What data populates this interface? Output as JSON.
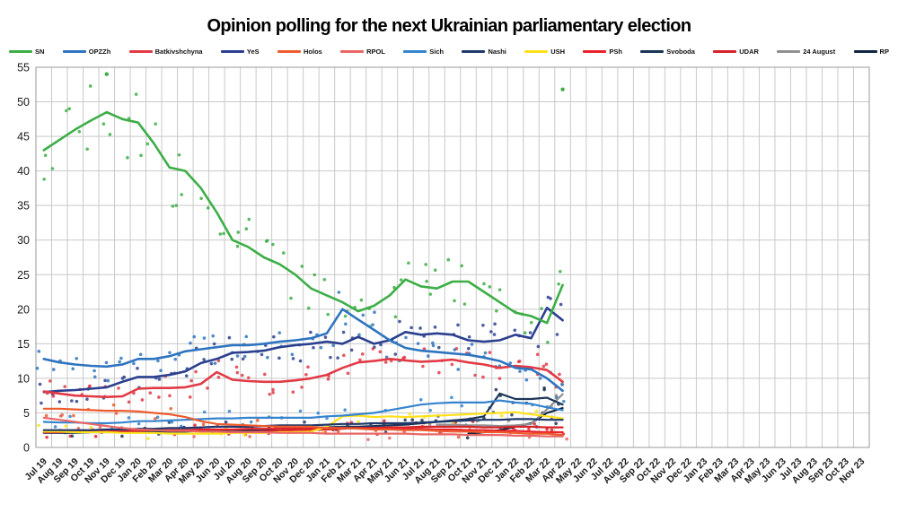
{
  "title": "Opinion polling for the next Ukrainian parliamentary election",
  "chart_data": {
    "type": "line",
    "title": "Opinion polling for the next Ukrainian parliamentary election",
    "xlabel": "",
    "ylabel": "",
    "ylim": [
      0,
      55
    ],
    "y_ticks": [
      0,
      5,
      10,
      15,
      20,
      25,
      30,
      35,
      40,
      45,
      50,
      55
    ],
    "grid": true,
    "legend_position": "top",
    "scatter_note": "Small dots are individual poll results; thick lines are trend averages. Polling data ends around Apr 22; empty grid continues to Nov 23.",
    "x_labels": [
      "Jul 19",
      "Aug 19",
      "Sep 19",
      "Oct 19",
      "Nov 19",
      "Dec 19",
      "Jan 20",
      "Feb 20",
      "Mar 20",
      "Apr 20",
      "May 20",
      "Jun 20",
      "Jul 20",
      "Aug 20",
      "Sep 20",
      "Oct 20",
      "Nov 20",
      "Dec 20",
      "Jan 21",
      "Feb 21",
      "Mar 21",
      "Apr 21",
      "May 21",
      "Jun 21",
      "Jul 21",
      "Aug 21",
      "Sep 21",
      "Oct 21",
      "Nov 21",
      "Dec 21",
      "Jan 22",
      "Feb 22",
      "Mar 22",
      "Apr 22",
      "May 22",
      "Jun 22",
      "Jul 22",
      "Aug 22",
      "Sep 22",
      "Oct 22",
      "Nov 22",
      "Dec 22",
      "Jan 23",
      "Feb 23",
      "Mar 23",
      "Apr 23",
      "May 23",
      "Jun 23",
      "Jul 23",
      "Aug 23",
      "Sep 23",
      "Oct 23",
      "Nov 23"
    ],
    "data_end": "Apr 22",
    "series": [
      {
        "name": "SN",
        "color": "#3dae46",
        "values": [
          43,
          44.5,
          46,
          47.3,
          48.5,
          47.5,
          47,
          44,
          40.5,
          40,
          37.5,
          34,
          30,
          29,
          27.5,
          26.5,
          25,
          23,
          22,
          21,
          19.7,
          20.5,
          22,
          24.3,
          23.3,
          23,
          24,
          24,
          22.5,
          21,
          19.5,
          19,
          18,
          23.5
        ]
      },
      {
        "name": "OPZZh",
        "color": "#2e74c0",
        "values": [
          12.8,
          12.3,
          12,
          11.8,
          11.7,
          12,
          12.8,
          12.8,
          13.2,
          13.9,
          14.2,
          14.5,
          14.8,
          14.8,
          15,
          15.3,
          15.5,
          15.8,
          16.5,
          20,
          18.5,
          17,
          15.5,
          14.4,
          14,
          13.8,
          13.6,
          13.4,
          13,
          12.5,
          11.5,
          11.3,
          10,
          8.2
        ]
      },
      {
        "name": "Batkivshchyna",
        "color": "#e23a45",
        "values": [
          8.1,
          7.8,
          7.5,
          7.4,
          7.3,
          7.4,
          8.5,
          8.6,
          8.6,
          8.7,
          9.2,
          10.9,
          9.8,
          9.6,
          9.5,
          9.5,
          9.7,
          10,
          10.5,
          11.5,
          12.3,
          12.5,
          12.8,
          12.6,
          12.4,
          12.5,
          12.7,
          12.3,
          12,
          11.5,
          11.8,
          11.6,
          11.2,
          9.5
        ]
      },
      {
        "name": "YeS",
        "color": "#2b3f8f",
        "values": [
          8,
          8.2,
          8.3,
          8.5,
          8.7,
          9.5,
          10.2,
          10.2,
          10.5,
          11,
          12.2,
          12.8,
          13.7,
          13.8,
          14,
          14.5,
          14.8,
          15,
          15.3,
          15,
          16,
          15,
          15.5,
          16.7,
          16.3,
          16.5,
          16.3,
          15.5,
          15.3,
          15.5,
          16.3,
          15.8,
          20.2,
          18.4
        ]
      },
      {
        "name": "Holos",
        "color": "#ed5b2d",
        "values": [
          5.6,
          5.6,
          5.5,
          5.4,
          5.3,
          5.3,
          5.2,
          5,
          4.8,
          4.4,
          3.8,
          3.4,
          3.3,
          3.2,
          3.1,
          3,
          3,
          3,
          2.8,
          2.8,
          2.7,
          2.6,
          2.6,
          2.5,
          2.5,
          2.4,
          2.3,
          2.3,
          2.2,
          2.2,
          2.1,
          2,
          2,
          1.8
        ]
      },
      {
        "name": "RPOL",
        "color": "#e96666",
        "values": [
          4.3,
          4,
          3.7,
          3.4,
          3.1,
          2.8,
          2.6,
          2.5,
          2.4,
          2.4,
          2.3,
          2.3,
          2.2,
          2.2,
          2.2,
          2.1,
          2.1,
          2.1,
          2,
          2,
          2,
          2,
          2,
          2,
          1.9,
          1.9,
          1.9,
          1.8,
          1.8,
          1.8,
          1.7,
          1.7,
          1.6,
          1.6
        ]
      },
      {
        "name": "Sich",
        "color": "#3584ce",
        "values": [
          3.7,
          3.6,
          3.6,
          3.5,
          3.5,
          3.6,
          3.8,
          3.8,
          3.9,
          4,
          4.1,
          4.2,
          4.2,
          4.3,
          4.3,
          4.3,
          4.3,
          4.3,
          4.5,
          4.6,
          4.8,
          5,
          5.4,
          5.8,
          6.2,
          6.4,
          6.5,
          6.5,
          6.5,
          6.8,
          6.5,
          6.3,
          5.8,
          5.4
        ]
      },
      {
        "name": "Nashi",
        "color": "#20386b",
        "values": [
          2.5,
          2.5,
          2.5,
          2.5,
          2.6,
          2.6,
          2.7,
          2.7,
          2.8,
          2.8,
          2.9,
          3,
          3,
          3,
          3.1,
          3.2,
          3.2,
          3.2,
          3.3,
          3.4,
          3.4,
          3.5,
          3.5,
          3.5,
          3.6,
          3.7,
          3.8,
          3.9,
          4,
          4,
          4.1,
          4.1,
          4,
          4
        ]
      },
      {
        "name": "USH",
        "color": "#ffe11a",
        "values": [
          2.3,
          2.3,
          2.2,
          2.2,
          2.2,
          2.1,
          2.1,
          2.1,
          2,
          2,
          2,
          2,
          2.1,
          2.1,
          2.1,
          2.2,
          2.2,
          2.3,
          3,
          4.5,
          4.6,
          4.4,
          4.5,
          4.4,
          4.5,
          4.6,
          4.7,
          4.8,
          4.9,
          5,
          5.1,
          4.8,
          4.5,
          4.2
        ]
      },
      {
        "name": "PSh",
        "color": "#e8232b",
        "values": [
          2.2,
          2.2,
          2.3,
          2.3,
          2.4,
          2.4,
          2.4,
          2.5,
          2.5,
          2.5,
          2.6,
          2.6,
          2.6,
          2.7,
          2.7,
          2.7,
          2.7,
          2.7,
          2.8,
          2.8,
          2.8,
          2.8,
          2.8,
          2.7,
          2.7,
          2.6,
          2.6,
          2.5,
          2.5,
          2.4,
          2.4,
          2.3,
          2.2,
          2.2
        ]
      },
      {
        "name": "Svoboda",
        "color": "#1c3557",
        "values": [
          2.1,
          2.1,
          2.1,
          2.2,
          2.2,
          2.2,
          2.2,
          2.3,
          2.3,
          2.3,
          2.4,
          2.4,
          2.5,
          2.5,
          2.6,
          2.7,
          2.8,
          2.8,
          2.9,
          3,
          3,
          3.1,
          3.2,
          3.3,
          3.5,
          3.7,
          3.9,
          4.1,
          4.5,
          7.8,
          7,
          7,
          7.2,
          6.2
        ]
      },
      {
        "name": "UDAR",
        "color": "#d6222a",
        "values": [
          null,
          null,
          null,
          null,
          null,
          null,
          null,
          null,
          null,
          null,
          null,
          null,
          2.2,
          2.3,
          2.4,
          2.4,
          2.5,
          2.5,
          2.6,
          2.7,
          2.8,
          2.8,
          2.9,
          2.9,
          3,
          3,
          3,
          3,
          2.9,
          2.9,
          3,
          3,
          2.9,
          2.9
        ]
      },
      {
        "name": "24 August",
        "color": "#909090",
        "values": [
          null,
          null,
          null,
          null,
          null,
          null,
          null,
          null,
          null,
          null,
          null,
          null,
          null,
          null,
          null,
          null,
          null,
          null,
          null,
          null,
          null,
          null,
          null,
          null,
          null,
          3.3,
          3.3,
          3.2,
          3.2,
          3.1,
          3.2,
          3.4,
          5.5,
          7.7
        ]
      },
      {
        "name": "RP",
        "color": "#0f2540",
        "values": [
          null,
          null,
          null,
          null,
          null,
          null,
          null,
          null,
          null,
          null,
          null,
          null,
          null,
          null,
          null,
          null,
          null,
          null,
          null,
          null,
          null,
          null,
          null,
          null,
          null,
          null,
          null,
          2,
          2.2,
          2.5,
          3,
          3.5,
          5,
          5.7
        ]
      }
    ],
    "notable_points": [
      {
        "series": "SN",
        "month": "Nov 19",
        "value": 54
      },
      {
        "series": "SN",
        "month": "Apr 22",
        "value": 51.8
      }
    ]
  }
}
